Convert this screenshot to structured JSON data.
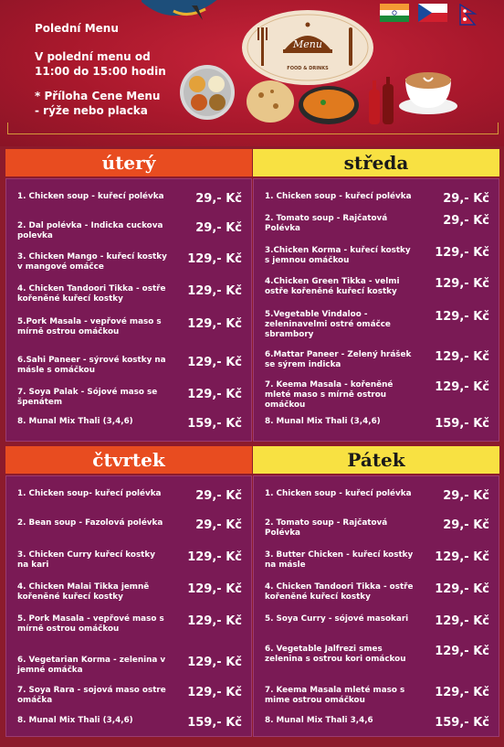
{
  "header": {
    "title": "Polední Menu",
    "time_line1": "V polední menu od",
    "time_line2": "11:00 do 15:00 hodin",
    "note_line1": "* Příloha Cene Menu",
    "note_line2": "- rýže nebo placka",
    "logo_text": "Menu",
    "logo_sub": "FOOD & DRINKS",
    "flags": [
      "india-flag",
      "czech-flag",
      "nepal-flag"
    ]
  },
  "colors": {
    "background": "#8c1b2c",
    "orange_header": "#e84c20",
    "yellow_header": "#f8e142",
    "panel": "#7a1a55"
  },
  "days": [
    {
      "name": "úterý",
      "style": "orange",
      "items": [
        {
          "name": "1. Chicken soup - kuřecí polévka",
          "price": "29,- Kč"
        },
        {
          "name": "2. Dal polévka - Indicka cuckova polevka",
          "price": "29,- Kč"
        },
        {
          "name": "3. Chicken Mango - kuřecí kostky v mangové omáčce",
          "price": "129,- Kč"
        },
        {
          "name": "4. Chicken Tandoori Tikka - ostře kořeněné kuřecí kostky",
          "price": "129,- Kč"
        },
        {
          "name": "5.Pork Masala - vepřové maso s mírně ostrou omáčkou",
          "price": "129,- Kč"
        },
        {
          "name": "6.Sahi Paneer - sýrové kostky na másle s omáčkou",
          "price": "129,- Kč"
        },
        {
          "name": "7. Soya Palak - Sójové maso se špenátem",
          "price": "129,- Kč"
        },
        {
          "name": "8. Munal Mix Thali (3,4,6)",
          "price": "159,- Kč"
        }
      ]
    },
    {
      "name": "středa",
      "style": "yellow",
      "items": [
        {
          "name": "1. Chicken soup - kuřecí polévka",
          "price": "29,- Kč"
        },
        {
          "name": "2. Tomato soup - Rajčatová Polévka",
          "price": "29,- Kč"
        },
        {
          "name": "3.Chicken Korma - kuřecí kostky s jemnou omáčkou",
          "price": "129,- Kč"
        },
        {
          "name": "4.Chicken Green Tikka - velmi ostře kořeněné kuřecí kostky",
          "price": "129,- Kč"
        },
        {
          "name": "5.Vegetable Vindaloo - zeleninavelmi ostré omáčce sbrambory",
          "price": "129,- Kč"
        },
        {
          "name": "6.Mattar Paneer - Zelený hrášek se sýrem indicka",
          "price": "129,- Kč"
        },
        {
          "name": "7. Keema Masala - kořeněné mleté maso s mírně ostrou omáčkou",
          "price": "129,- Kč"
        },
        {
          "name": "8. Munal Mix Thali (3,4,6)",
          "price": "159,- Kč"
        }
      ]
    },
    {
      "name": "čtvrtek",
      "style": "orange",
      "items": [
        {
          "name": "1. Chicken soup- kuřecí polévka",
          "price": "29,- Kč"
        },
        {
          "name": "2. Bean soup - Fazolová polévka",
          "price": "29,- Kč"
        },
        {
          "name": "3. Chicken Curry kuřecí kostky na kari",
          "price": "129,- Kč"
        },
        {
          "name": "4. Chicken Malai Tikka jemně kořeněné kuřecí kostky",
          "price": "129,- Kč"
        },
        {
          "name": "5. Pork Masala - vepřové maso s mírně ostrou omáčkou",
          "price": "129,- Kč"
        },
        {
          "name": "6. Vegetarian Korma - zelenina v jemné omáčka",
          "price": "129,- Kč"
        },
        {
          "name": "7. Soya Rara - sojová maso ostre omáčka",
          "price": "129,- Kč"
        },
        {
          "name": "8. Munal Mix Thali (3,4,6)",
          "price": "159,- Kč"
        }
      ]
    },
    {
      "name": "Pátek",
      "style": "yellow",
      "items": [
        {
          "name": "1. Chicken soup - kuřecí polévka",
          "price": "29,- Kč"
        },
        {
          "name": "2. Tomato soup - Rajčatová Polévka",
          "price": "29,- Kč"
        },
        {
          "name": "3. Butter Chicken - kuřecí kostky na másle",
          "price": "129,- Kč"
        },
        {
          "name": "4. Chicken Tandoori Tikka - ostře kořeněné kuřecí kostky",
          "price": "129,- Kč"
        },
        {
          "name": "5. Soya Curry - sójové masokari",
          "price": "129,- Kč"
        },
        {
          "name": "6. Vegetable Jalfrezi smes zelenina s ostrou kori omáckou",
          "price": "129,- Kč"
        },
        {
          "name": "7. Keema Masala mleté maso s mime ostrou omáčkou",
          "price": "129,- Kč"
        },
        {
          "name": "8. Munal Mix Thali 3,4,6",
          "price": "159,- Kč"
        }
      ]
    }
  ]
}
